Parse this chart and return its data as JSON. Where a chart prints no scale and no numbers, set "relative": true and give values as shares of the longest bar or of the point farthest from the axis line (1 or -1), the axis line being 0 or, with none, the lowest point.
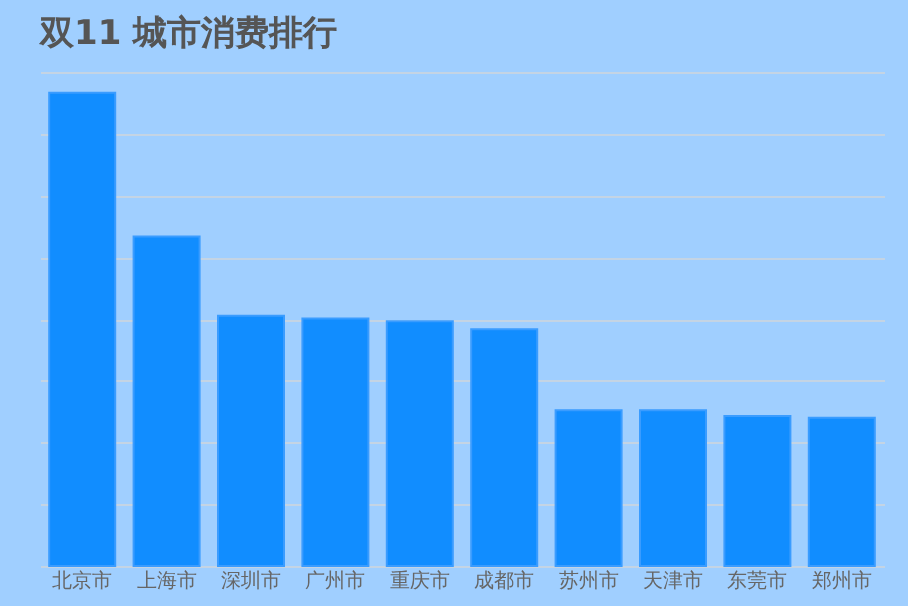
{
  "chart_data": {
    "type": "bar",
    "title": "双11 城市消费排行",
    "relative": true,
    "categories": [
      "北京市",
      "上海市",
      "深圳市",
      "广州市",
      "重庆市",
      "成都市",
      "苏州市",
      "天津市",
      "东莞市",
      "郑州市"
    ],
    "values": [
      1,
      0.696,
      0.529,
      0.523,
      0.517,
      0.5,
      0.329,
      0.329,
      0.317,
      0.313
    ],
    "color": "#118dff",
    "grid": "y"
  }
}
